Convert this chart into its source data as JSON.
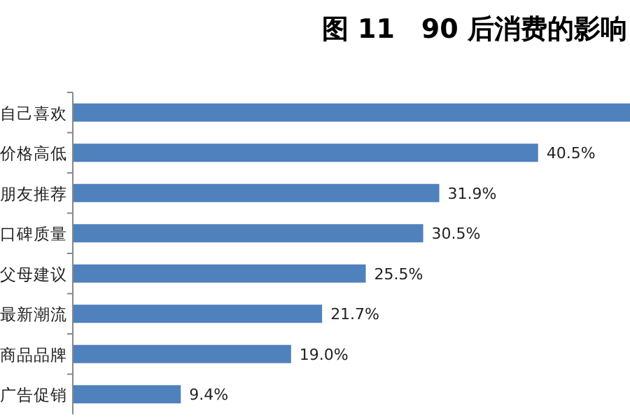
{
  "chart_data": {
    "type": "bar",
    "orientation": "horizontal",
    "title": "图 11　90 后消费的影响",
    "categories": [
      "自己喜欢",
      "价格高低",
      "朋友推荐",
      "口碑质量",
      "父母建议",
      "最新潮流",
      "商品品牌",
      "广告促销"
    ],
    "values": [
      48.5,
      40.5,
      31.9,
      30.5,
      25.5,
      21.7,
      19.0,
      9.4
    ],
    "value_labels": [
      null,
      "40.5%",
      "31.9%",
      "30.5%",
      "25.5%",
      "21.7%",
      "19.0%",
      "9.4%"
    ],
    "color": "#4f81bd",
    "xlim": [
      0,
      48.5
    ],
    "tick_labels": "y"
  }
}
